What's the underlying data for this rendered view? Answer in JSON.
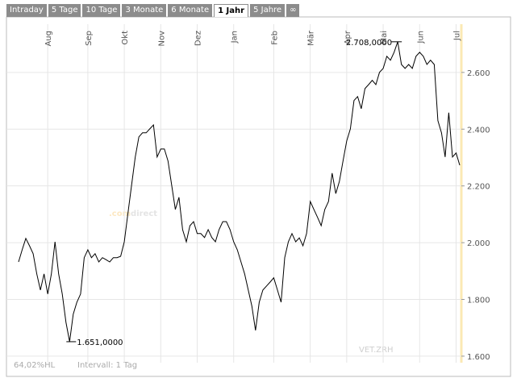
{
  "tabs": [
    {
      "label": "Intraday",
      "active": false
    },
    {
      "label": "5 Tage",
      "active": false
    },
    {
      "label": "10 Tage",
      "active": false
    },
    {
      "label": "3 Monate",
      "active": false
    },
    {
      "label": "6 Monate",
      "active": false
    },
    {
      "label": "1 Jahr",
      "active": true
    },
    {
      "label": "5 Jahre",
      "active": false
    },
    {
      "label": "∞",
      "active": false
    }
  ],
  "chart_data": {
    "type": "line",
    "watermark": [
      ".com",
      "direct"
    ],
    "symbol": "VET.ZRH",
    "footer_left": "64,02%HL",
    "footer_right": "Intervall: 1 Tag",
    "categories": [
      null,
      null,
      null,
      null,
      null,
      null,
      null,
      null,
      "Aug",
      null,
      null,
      null,
      null,
      null,
      null,
      null,
      null,
      null,
      null,
      "Sep",
      null,
      null,
      null,
      null,
      null,
      null,
      null,
      null,
      null,
      "Okt",
      null,
      null,
      null,
      null,
      null,
      null,
      null,
      null,
      null,
      "Nov",
      null,
      null,
      null,
      null,
      null,
      null,
      null,
      null,
      null,
      "Dez",
      null,
      null,
      null,
      null,
      null,
      null,
      null,
      null,
      null,
      "Jan",
      null,
      null,
      null,
      null,
      null,
      null,
      null,
      null,
      null,
      null,
      "Feb",
      null,
      null,
      null,
      null,
      null,
      null,
      null,
      null,
      null,
      "Mär",
      null,
      null,
      null,
      null,
      null,
      null,
      null,
      null,
      null,
      "Apr",
      null,
      null,
      null,
      null,
      null,
      null,
      null,
      null,
      null,
      "Mai",
      null,
      null,
      null,
      null,
      null,
      null,
      null,
      null,
      null,
      "Jun",
      null,
      null,
      null,
      null,
      null,
      null,
      null,
      null,
      null,
      "Jul",
      null
    ],
    "values": [
      1932,
      1975,
      2015,
      1989,
      1961,
      1890,
      1833,
      1890,
      1819,
      1890,
      2003,
      1890,
      1819,
      1719,
      1651,
      1748,
      1790,
      1819,
      1947,
      1975,
      1947,
      1961,
      1932,
      1947,
      1940,
      1932,
      1947,
      1947,
      1952,
      2003,
      2103,
      2202,
      2302,
      2373,
      2387,
      2387,
      2401,
      2415,
      2302,
      2330,
      2330,
      2288,
      2202,
      2117,
      2160,
      2046,
      2003,
      2060,
      2074,
      2032,
      2032,
      2018,
      2046,
      2018,
      2003,
      2046,
      2074,
      2074,
      2046,
      2003,
      1975,
      1932,
      1890,
      1833,
      1776,
      1691,
      1790,
      1833,
      1847,
      1861,
      1876,
      1833,
      1790,
      1947,
      2003,
      2032,
      2003,
      2017,
      1989,
      2032,
      2145,
      2117,
      2089,
      2060,
      2117,
      2145,
      2245,
      2173,
      2216,
      2288,
      2359,
      2401,
      2501,
      2515,
      2472,
      2543,
      2557,
      2572,
      2557,
      2600,
      2614,
      2657,
      2643,
      2671,
      2708,
      2628,
      2614,
      2628,
      2614,
      2657,
      2671,
      2657,
      2628,
      2643,
      2628,
      2430,
      2387,
      2302,
      2458,
      2302,
      2316,
      2273
    ],
    "value_labels": [
      null,
      null,
      null,
      null,
      null,
      null,
      null,
      null,
      null,
      null,
      null,
      null,
      null,
      null,
      "1.651,0000",
      null,
      null,
      null,
      null,
      null,
      null,
      null,
      null,
      null,
      null,
      null,
      null,
      null,
      null,
      null,
      null,
      null,
      null,
      null,
      null,
      null,
      null,
      null,
      null,
      null,
      null,
      null,
      null,
      null,
      null,
      null,
      null,
      null,
      null,
      null,
      null,
      null,
      null,
      null,
      null,
      null,
      null,
      null,
      null,
      null,
      null,
      null,
      null,
      null,
      null,
      null,
      null,
      null,
      null,
      null,
      null,
      null,
      null,
      null,
      null,
      null,
      null,
      null,
      null,
      null,
      null,
      null,
      null,
      null,
      null,
      null,
      null,
      null,
      null,
      null,
      null,
      null,
      null,
      null,
      null,
      null,
      null,
      null,
      null,
      null,
      null,
      null,
      null,
      null,
      "2.708,0000",
      null,
      null,
      null,
      null,
      null,
      null,
      null,
      null,
      null,
      null,
      null,
      null,
      null,
      null,
      null,
      null,
      null
    ],
    "color": "#000000",
    "ylim": [
      1577,
      2770
    ],
    "yticks": [
      {
        "value": 1600,
        "label": "1.600"
      },
      {
        "value": 1800,
        "label": "1.800"
      },
      {
        "value": 2000,
        "label": "2.000"
      },
      {
        "value": 2200,
        "label": "2.200"
      },
      {
        "value": 2400,
        "label": "2.400"
      },
      {
        "value": 2600,
        "label": "2.600"
      }
    ],
    "grid": true
  }
}
